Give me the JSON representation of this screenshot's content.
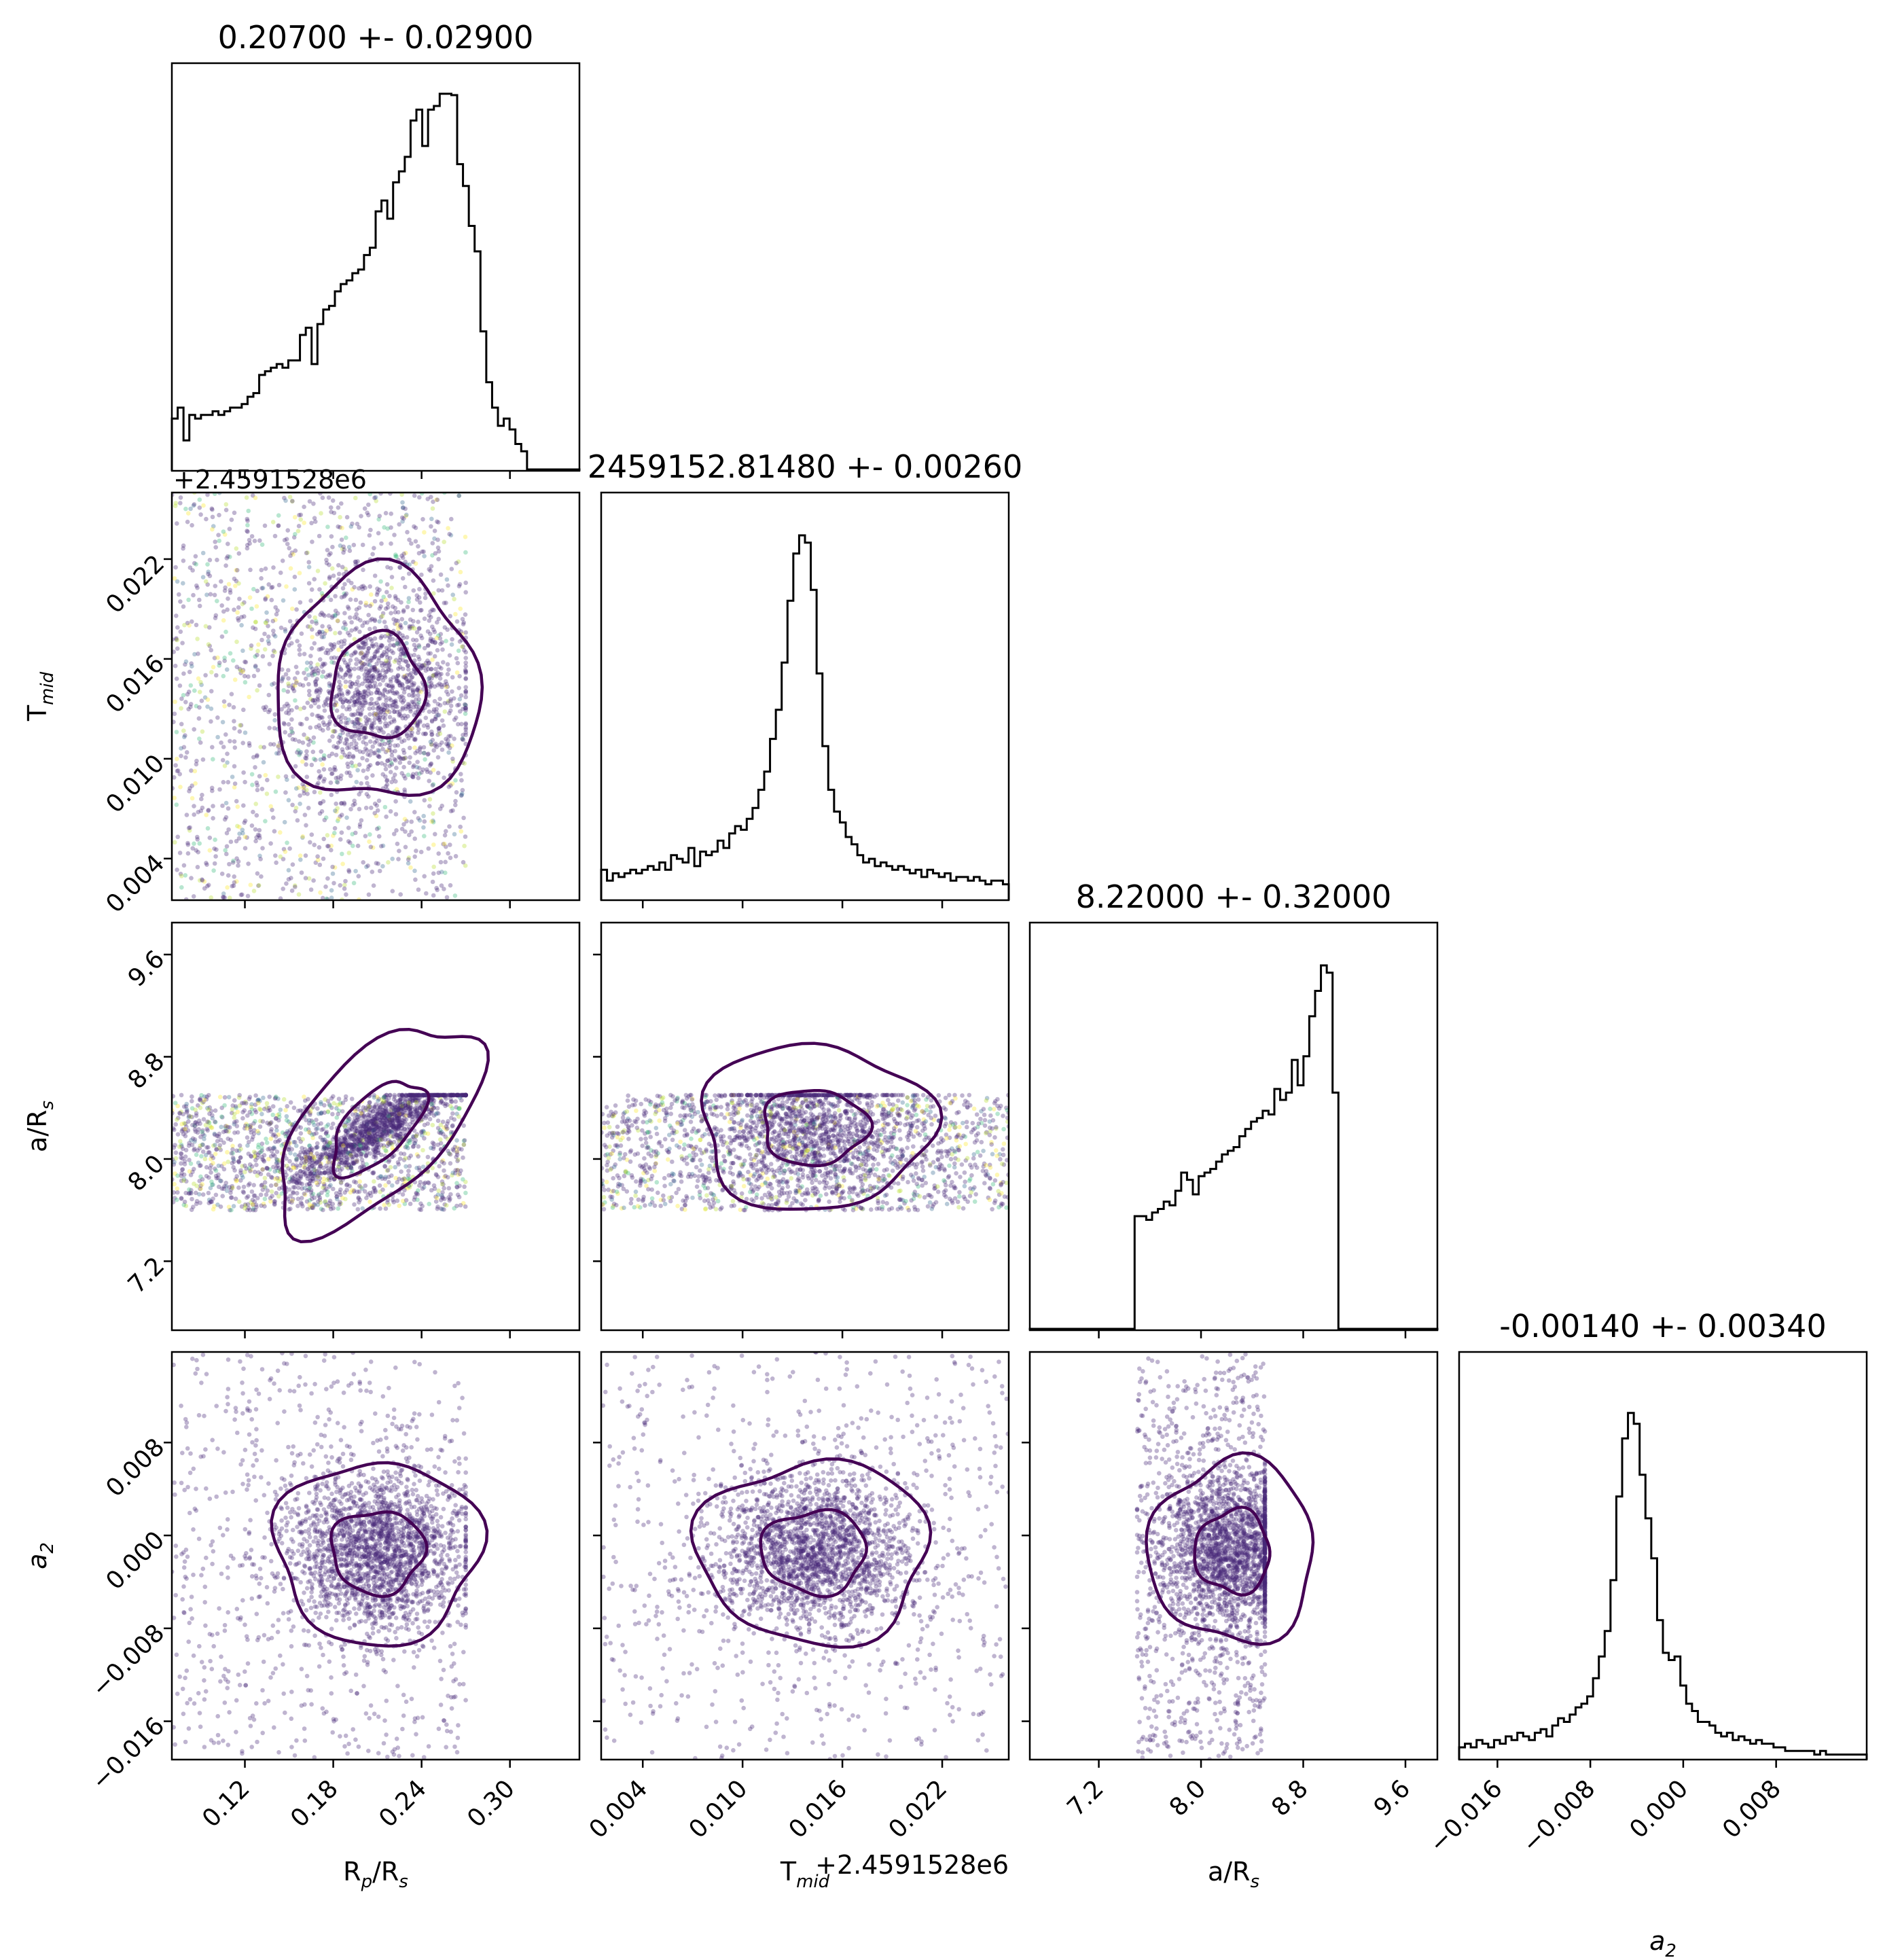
{
  "chart_data": {
    "type": "corner",
    "parameters": [
      {
        "key": "rp",
        "label": "R",
        "label_sub": "p",
        "label_suffix": "/R",
        "label_suffix_sub": "s",
        "range": [
          0.0704,
          0.3472
        ],
        "ticks": [
          0.12,
          0.18,
          0.24,
          0.3
        ],
        "tick_labels": [
          "0.12",
          "0.18",
          "0.24",
          "0.30"
        ],
        "title": "0.20700 +- 0.02900",
        "offset_text": "",
        "hist": [
          0.14,
          0.17,
          0.08,
          0.15,
          0.14,
          0.15,
          0.15,
          0.16,
          0.15,
          0.16,
          0.17,
          0.17,
          0.18,
          0.2,
          0.21,
          0.26,
          0.27,
          0.28,
          0.29,
          0.28,
          0.3,
          0.3,
          0.37,
          0.39,
          0.29,
          0.4,
          0.44,
          0.45,
          0.49,
          0.51,
          0.52,
          0.54,
          0.55,
          0.59,
          0.61,
          0.71,
          0.74,
          0.69,
          0.79,
          0.82,
          0.86,
          0.96,
          0.99,
          0.89,
          0.99,
          1.0,
          1.04,
          1.07,
          1.03,
          0.84,
          0.78,
          0.67,
          0.6,
          0.38,
          0.24,
          0.17,
          0.12,
          0.14,
          0.11,
          0.07,
          0.05,
          0,
          0,
          0,
          0,
          0,
          0,
          0,
          0,
          0
        ]
      },
      {
        "key": "tmid",
        "label": "T",
        "label_sub": "mid",
        "label_suffix": "",
        "label_suffix_sub": "",
        "range": [
          0.0015,
          0.026
        ],
        "ticks": [
          0.004,
          0.01,
          0.016,
          0.022
        ],
        "tick_labels": [
          "0.004",
          "0.010",
          "0.016",
          "0.022"
        ],
        "title": "2459152.81480 +- 0.00260",
        "offset_text": "+2.4591528e6",
        "hist": [
          0.08,
          0.05,
          0.07,
          0.06,
          0.07,
          0.08,
          0.07,
          0.08,
          0.09,
          0.08,
          0.1,
          0.08,
          0.12,
          0.11,
          0.1,
          0.14,
          0.09,
          0.13,
          0.12,
          0.13,
          0.16,
          0.14,
          0.18,
          0.2,
          0.19,
          0.22,
          0.25,
          0.3,
          0.35,
          0.44,
          0.52,
          0.65,
          0.82,
          0.95,
          1.0,
          0.98,
          0.85,
          0.62,
          0.42,
          0.3,
          0.24,
          0.21,
          0.17,
          0.15,
          0.12,
          0.1,
          0.11,
          0.09,
          0.1,
          0.09,
          0.08,
          0.09,
          0.08,
          0.07,
          0.08,
          0.06,
          0.08,
          0.07,
          0.06,
          0.07,
          0.05,
          0.06,
          0.06,
          0.05,
          0.06,
          0.05,
          0.04,
          0.05,
          0.05,
          0.04
        ]
      },
      {
        "key": "ars",
        "label": "a/R",
        "label_sub": "s",
        "label_suffix": "",
        "label_suffix_sub": "",
        "range": [
          6.66,
          9.85
        ],
        "ticks": [
          7.2,
          8.0,
          8.8,
          9.6
        ],
        "tick_labels": [
          "7.2",
          "8.0",
          "8.8",
          "9.6"
        ],
        "title": "8.22000 +- 0.32000",
        "offset_text": "",
        "hist": [
          0,
          0,
          0,
          0,
          0,
          0,
          0,
          0,
          0,
          0,
          0,
          0,
          0,
          0,
          0,
          0,
          0,
          0,
          0.31,
          0.31,
          0.3,
          0.32,
          0.33,
          0.35,
          0.34,
          0.38,
          0.43,
          0.41,
          0.37,
          0.42,
          0.43,
          0.44,
          0.46,
          0.48,
          0.49,
          0.5,
          0.53,
          0.55,
          0.57,
          0.58,
          0.6,
          0.59,
          0.66,
          0.63,
          0.65,
          0.74,
          0.67,
          0.75,
          0.86,
          0.93,
          1.0,
          0.98,
          0.65,
          0,
          0,
          0,
          0,
          0,
          0,
          0,
          0,
          0,
          0,
          0,
          0,
          0,
          0,
          0,
          0,
          0
        ]
      },
      {
        "key": "a2",
        "label": "a",
        "label_sub": "2",
        "label_suffix": "",
        "label_suffix_sub": "",
        "label_italic": true,
        "range": [
          -0.0193,
          0.0158
        ],
        "ticks": [
          -0.016,
          -0.008,
          0.0,
          0.008
        ],
        "tick_labels": [
          "−0.016",
          "−0.008",
          "0.000",
          "0.008"
        ],
        "title": "-0.00140 +- 0.00340",
        "offset_text": "",
        "hist": [
          0.03,
          0.04,
          0.03,
          0.05,
          0.04,
          0.03,
          0.05,
          0.04,
          0.06,
          0.05,
          0.07,
          0.06,
          0.05,
          0.07,
          0.08,
          0.06,
          0.09,
          0.11,
          0.1,
          0.12,
          0.14,
          0.15,
          0.17,
          0.22,
          0.28,
          0.35,
          0.49,
          0.72,
          0.88,
          0.95,
          0.92,
          0.78,
          0.66,
          0.55,
          0.38,
          0.29,
          0.27,
          0.28,
          0.2,
          0.15,
          0.13,
          0.1,
          0.1,
          0.09,
          0.07,
          0.06,
          0.07,
          0.05,
          0.06,
          0.05,
          0.04,
          0.05,
          0.04,
          0.04,
          0.03,
          0.03,
          0.02,
          0.02,
          0.02,
          0.02,
          0.02,
          0.01,
          0.02,
          0.01,
          0.01,
          0.01,
          0.01,
          0.01,
          0.01,
          0.01
        ]
      }
    ],
    "scatter_panels": [
      {
        "x": "rp",
        "y": "tmid",
        "x_spread": [
          0.0704,
          0.27
        ],
        "y_spread": [
          0.0015,
          0.026
        ],
        "center": [
          0.21,
          0.0143
        ],
        "sigma": [
          0.03,
          0.003
        ],
        "uniform_fraction": 0.55
      },
      {
        "x": "rp",
        "y": "ars",
        "x_spread": [
          0.0704,
          0.27
        ],
        "y_spread": [
          7.6,
          8.5
        ],
        "center": [
          0.21,
          8.25
        ],
        "sigma": [
          0.03,
          0.28
        ],
        "uniform_fraction": 0.55,
        "correlated": true
      },
      {
        "x": "tmid",
        "y": "ars",
        "x_spread": [
          0.0015,
          0.026
        ],
        "y_spread": [
          7.6,
          8.5
        ],
        "center": [
          0.0143,
          8.25
        ],
        "sigma": [
          0.003,
          0.28
        ],
        "uniform_fraction": 0.55
      },
      {
        "x": "rp",
        "y": "a2",
        "x_spread": [
          0.0704,
          0.27
        ],
        "y_spread": [
          -0.0193,
          0.0158
        ],
        "center": [
          0.21,
          -0.0014
        ],
        "sigma": [
          0.03,
          0.0034
        ],
        "uniform_fraction": 0.25
      },
      {
        "x": "tmid",
        "y": "a2",
        "x_spread": [
          0.0015,
          0.026
        ],
        "y_spread": [
          -0.0193,
          0.0158
        ],
        "center": [
          0.0143,
          -0.0014
        ],
        "sigma": [
          0.003,
          0.0034
        ],
        "uniform_fraction": 0.25
      },
      {
        "x": "ars",
        "y": "a2",
        "x_spread": [
          7.5,
          8.5
        ],
        "y_spread": [
          -0.0193,
          0.0158
        ],
        "center": [
          8.25,
          -0.0014
        ],
        "sigma": [
          0.28,
          0.0034
        ],
        "uniform_fraction": 0.3
      }
    ],
    "grid": false,
    "legend": "none",
    "colors": {
      "hist_line": "#000000",
      "contour": "#440154",
      "scatter_main": "#482878",
      "scatter_alt": [
        "#fde725",
        "#35b779",
        "#31688e",
        "#b5de2b"
      ]
    }
  }
}
